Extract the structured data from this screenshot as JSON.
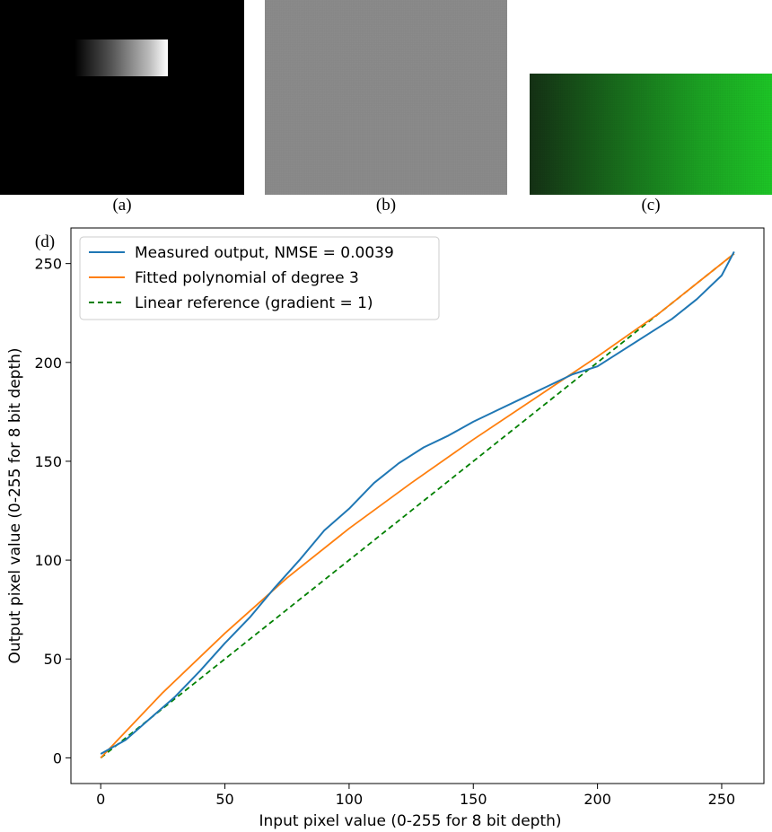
{
  "panels": {
    "a": {
      "label": "(a)"
    },
    "b": {
      "label": "(b)"
    },
    "c": {
      "label": "(c)"
    },
    "d": {
      "label": "(d)"
    }
  },
  "colors": {
    "measured": "#1f77b4",
    "fitted": "#ff7f0e",
    "reference": "#008000",
    "panel_a_bg": "#000000",
    "panel_b_bg": "#8a8a8a",
    "panel_c_dark": "#0a2a0a",
    "panel_c_bright": "#14d21e"
  },
  "chart_data": {
    "type": "line",
    "title": "",
    "xlabel": "Input pixel value (0-255 for 8 bit depth)",
    "ylabel": "Output pixel value (0-255 for 8 bit depth)",
    "xlim": [
      -12,
      267
    ],
    "ylim": [
      -13,
      268
    ],
    "xticks": [
      0,
      50,
      100,
      150,
      200,
      250
    ],
    "yticks": [
      0,
      50,
      100,
      150,
      200,
      250
    ],
    "grid": false,
    "legend_position": "top-left",
    "series": [
      {
        "name": "Measured output, NMSE = 0.0039",
        "style": "solid",
        "x": [
          0,
          10,
          20,
          30,
          40,
          50,
          60,
          70,
          80,
          90,
          100,
          110,
          120,
          130,
          140,
          150,
          160,
          170,
          180,
          190,
          200,
          210,
          220,
          230,
          240,
          250,
          255
        ],
        "y": [
          2,
          9,
          20,
          31,
          44,
          58,
          71,
          86,
          100,
          115,
          126,
          139,
          149,
          157,
          163,
          170,
          176,
          182,
          188,
          194,
          198,
          206,
          214,
          222,
          232,
          244,
          256
        ]
      },
      {
        "name": "Fitted polynomial of degree 3",
        "style": "solid",
        "x": [
          0,
          25,
          50,
          75,
          100,
          125,
          150,
          175,
          200,
          225,
          255
        ],
        "y": [
          0,
          33,
          63,
          91,
          116,
          139,
          161,
          182,
          203,
          225,
          255
        ]
      },
      {
        "name": "Linear reference (gradient = 1)",
        "style": "dashed",
        "x": [
          0,
          255
        ],
        "y": [
          0,
          255
        ]
      }
    ]
  }
}
